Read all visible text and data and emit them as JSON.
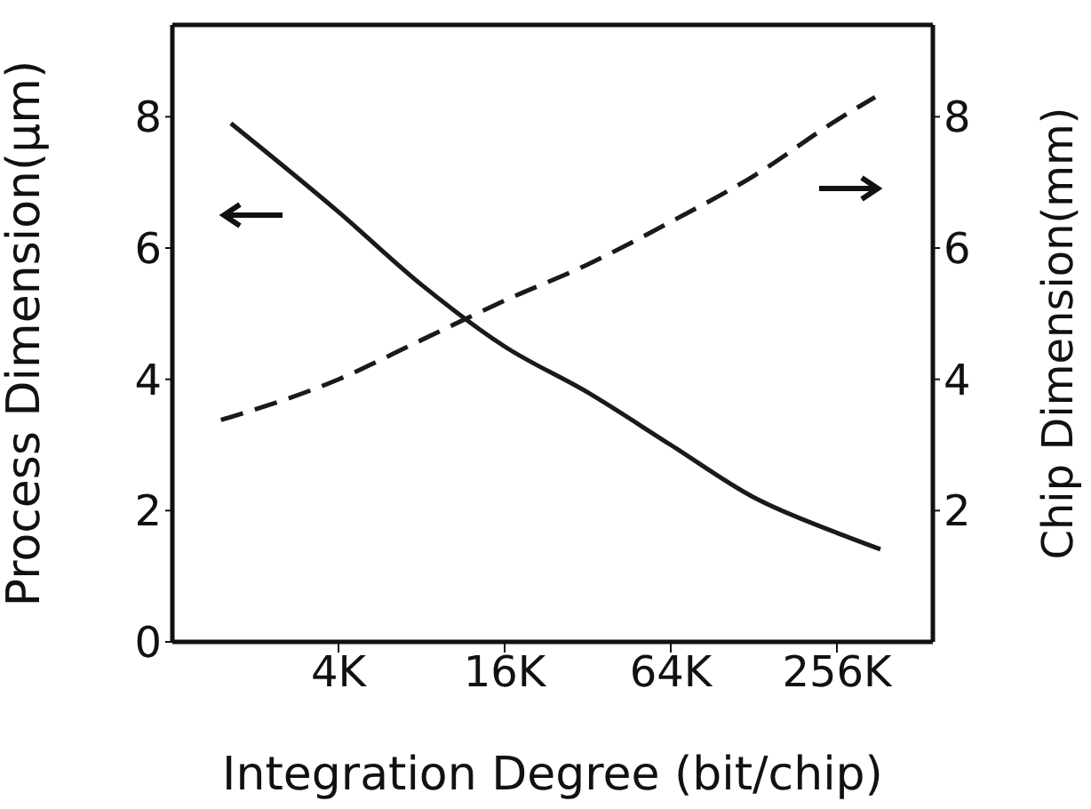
{
  "chart_data": {
    "type": "line",
    "xlabel": "Integration Degree (bit/chip)",
    "ylabel": "Process Dimension(μm)",
    "y2label": "Chip Dimension(mm)",
    "log": "x",
    "xlim": [
      1,
      570
    ],
    "xticks": [
      {
        "value": 4,
        "label": "4K"
      },
      {
        "value": 16,
        "label": "16K"
      },
      {
        "value": 64,
        "label": "64K"
      },
      {
        "value": 256,
        "label": "256K"
      }
    ],
    "ylim": [
      0,
      9.4
    ],
    "yticks": [
      0,
      2,
      4,
      6,
      8
    ],
    "y2lim": [
      0,
      9.4
    ],
    "y2ticks": [
      2,
      4,
      6,
      8
    ],
    "marker": "none",
    "series": [
      {
        "color": "#1a1a1a",
        "line_style": "solid",
        "x": [
          1.63,
          4,
          8,
          16,
          32,
          64,
          128,
          256,
          368
        ],
        "values": [
          7.9,
          6.55,
          5.44,
          4.5,
          3.8,
          3.0,
          2.2,
          1.66,
          1.41
        ]
      },
      {
        "color": "#1a1a1a",
        "line_style": "dashed",
        "x": [
          1.5,
          4,
          8,
          16,
          32,
          64,
          128,
          256,
          352
        ],
        "values": [
          3.38,
          4.0,
          4.6,
          5.2,
          5.75,
          6.4,
          7.1,
          7.95,
          8.3
        ]
      }
    ]
  }
}
